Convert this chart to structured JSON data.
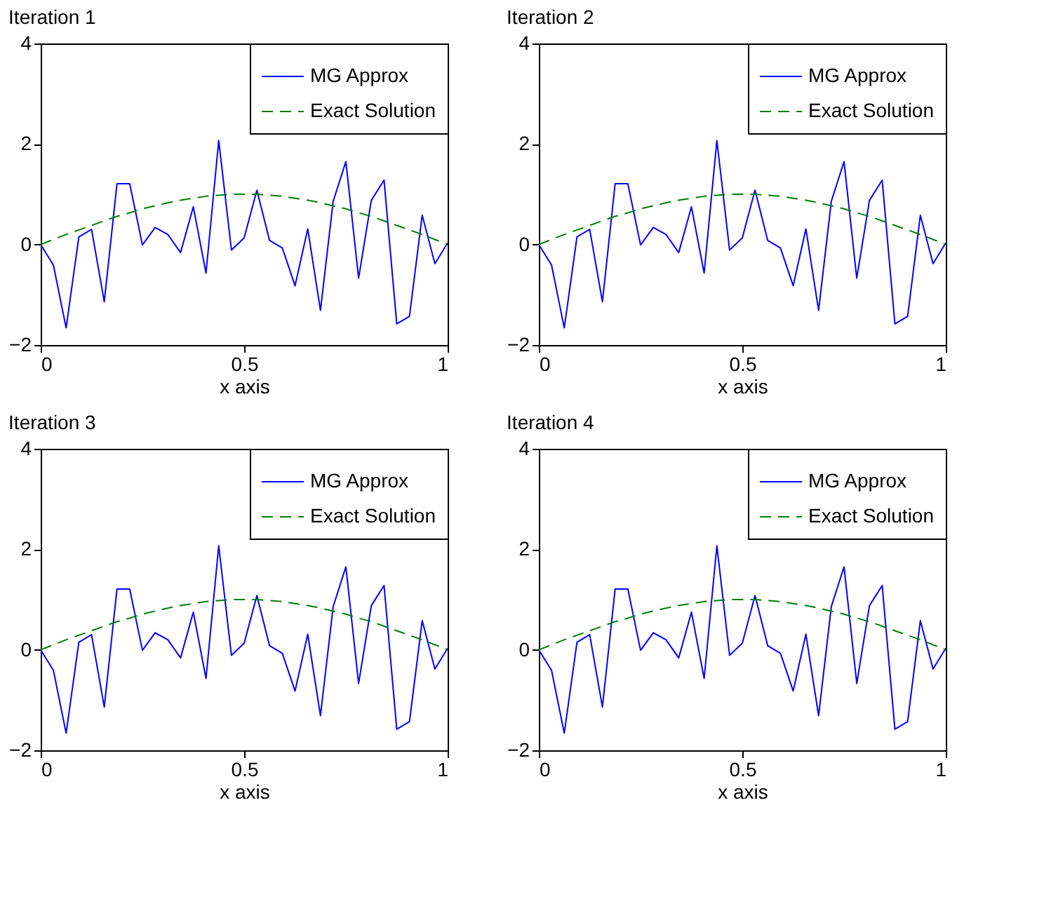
{
  "chart_data": [
    {
      "type": "line",
      "title": "Iteration 1",
      "xlabel": "x axis",
      "x": [
        0,
        0.03125,
        0.0625,
        0.09375,
        0.125,
        0.15625,
        0.1875,
        0.21875,
        0.25,
        0.28125,
        0.3125,
        0.34375,
        0.375,
        0.40625,
        0.4375,
        0.46875,
        0.5,
        0.53125,
        0.5625,
        0.59375,
        0.625,
        0.65625,
        0.6875,
        0.71875,
        0.75,
        0.78125,
        0.8125,
        0.84375,
        0.875,
        0.90625,
        0.9375,
        0.96875,
        1
      ],
      "xlim": [
        0,
        1
      ],
      "xticks": [
        0,
        0.5,
        1
      ],
      "ylim": [
        -2,
        4
      ],
      "yticks": [
        -2,
        0,
        2,
        4
      ],
      "grid": false,
      "legend": "top right",
      "series": [
        {
          "name": "MG Approx",
          "color": "#0000ff",
          "line_style": "solid",
          "values": [
            0,
            -0.41,
            -1.66,
            0.15,
            0.3,
            -1.14,
            1.21,
            1.21,
            -0.01,
            0.34,
            0.2,
            -0.16,
            0.75,
            -0.57,
            2.07,
            -0.11,
            0.13,
            1.08,
            0.08,
            -0.07,
            -0.82,
            0.31,
            -1.31,
            0.86,
            1.65,
            -0.67,
            0.88,
            1.28,
            -1.58,
            -1.43,
            0.58,
            -0.38,
            0.03
          ]
        },
        {
          "name": "Exact Solution",
          "color": "#008000",
          "line_style": "dashed",
          "values": [
            0,
            0.1,
            0.2,
            0.29,
            0.38,
            0.47,
            0.56,
            0.63,
            0.71,
            0.77,
            0.83,
            0.88,
            0.92,
            0.96,
            0.98,
            1,
            1,
            1,
            0.98,
            0.96,
            0.92,
            0.88,
            0.83,
            0.77,
            0.71,
            0.63,
            0.56,
            0.47,
            0.38,
            0.29,
            0.2,
            0.1,
            0
          ]
        }
      ]
    },
    {
      "type": "line",
      "title": "Iteration 2",
      "xlabel": "x axis",
      "x": [
        0,
        0.03125,
        0.0625,
        0.09375,
        0.125,
        0.15625,
        0.1875,
        0.21875,
        0.25,
        0.28125,
        0.3125,
        0.34375,
        0.375,
        0.40625,
        0.4375,
        0.46875,
        0.5,
        0.53125,
        0.5625,
        0.59375,
        0.625,
        0.65625,
        0.6875,
        0.71875,
        0.75,
        0.78125,
        0.8125,
        0.84375,
        0.875,
        0.90625,
        0.9375,
        0.96875,
        1
      ],
      "xlim": [
        0,
        1
      ],
      "xticks": [
        0,
        0.5,
        1
      ],
      "ylim": [
        -2,
        4
      ],
      "yticks": [
        -2,
        0,
        2,
        4
      ],
      "grid": false,
      "legend": "top right",
      "series": [
        {
          "name": "MG Approx",
          "color": "#0000ff",
          "line_style": "solid",
          "values": [
            0,
            -0.41,
            -1.66,
            0.15,
            0.3,
            -1.14,
            1.21,
            1.21,
            -0.01,
            0.34,
            0.2,
            -0.16,
            0.75,
            -0.57,
            2.07,
            -0.11,
            0.13,
            1.08,
            0.08,
            -0.07,
            -0.82,
            0.31,
            -1.31,
            0.86,
            1.65,
            -0.67,
            0.88,
            1.28,
            -1.58,
            -1.43,
            0.58,
            -0.38,
            0.03
          ]
        },
        {
          "name": "Exact Solution",
          "color": "#008000",
          "line_style": "dashed",
          "values": [
            0,
            0.1,
            0.2,
            0.29,
            0.38,
            0.47,
            0.56,
            0.63,
            0.71,
            0.77,
            0.83,
            0.88,
            0.92,
            0.96,
            0.98,
            1,
            1,
            1,
            0.98,
            0.96,
            0.92,
            0.88,
            0.83,
            0.77,
            0.71,
            0.63,
            0.56,
            0.47,
            0.38,
            0.29,
            0.2,
            0.1,
            0
          ]
        }
      ]
    },
    {
      "type": "line",
      "title": "Iteration 3",
      "xlabel": "x axis",
      "x": [
        0,
        0.03125,
        0.0625,
        0.09375,
        0.125,
        0.15625,
        0.1875,
        0.21875,
        0.25,
        0.28125,
        0.3125,
        0.34375,
        0.375,
        0.40625,
        0.4375,
        0.46875,
        0.5,
        0.53125,
        0.5625,
        0.59375,
        0.625,
        0.65625,
        0.6875,
        0.71875,
        0.75,
        0.78125,
        0.8125,
        0.84375,
        0.875,
        0.90625,
        0.9375,
        0.96875,
        1
      ],
      "xlim": [
        0,
        1
      ],
      "xticks": [
        0,
        0.5,
        1
      ],
      "ylim": [
        -2,
        4
      ],
      "yticks": [
        -2,
        0,
        2,
        4
      ],
      "grid": false,
      "legend": "top right",
      "series": [
        {
          "name": "MG Approx",
          "color": "#0000ff",
          "line_style": "solid",
          "values": [
            0,
            -0.41,
            -1.66,
            0.15,
            0.3,
            -1.14,
            1.21,
            1.21,
            -0.01,
            0.34,
            0.2,
            -0.16,
            0.75,
            -0.57,
            2.07,
            -0.11,
            0.13,
            1.08,
            0.08,
            -0.07,
            -0.82,
            0.31,
            -1.31,
            0.86,
            1.65,
            -0.67,
            0.88,
            1.28,
            -1.58,
            -1.43,
            0.58,
            -0.38,
            0.03
          ]
        },
        {
          "name": "Exact Solution",
          "color": "#008000",
          "line_style": "dashed",
          "values": [
            0,
            0.1,
            0.2,
            0.29,
            0.38,
            0.47,
            0.56,
            0.63,
            0.71,
            0.77,
            0.83,
            0.88,
            0.92,
            0.96,
            0.98,
            1,
            1,
            1,
            0.98,
            0.96,
            0.92,
            0.88,
            0.83,
            0.77,
            0.71,
            0.63,
            0.56,
            0.47,
            0.38,
            0.29,
            0.2,
            0.1,
            0
          ]
        }
      ]
    },
    {
      "type": "line",
      "title": "Iteration 4",
      "xlabel": "x axis",
      "x": [
        0,
        0.03125,
        0.0625,
        0.09375,
        0.125,
        0.15625,
        0.1875,
        0.21875,
        0.25,
        0.28125,
        0.3125,
        0.34375,
        0.375,
        0.40625,
        0.4375,
        0.46875,
        0.5,
        0.53125,
        0.5625,
        0.59375,
        0.625,
        0.65625,
        0.6875,
        0.71875,
        0.75,
        0.78125,
        0.8125,
        0.84375,
        0.875,
        0.90625,
        0.9375,
        0.96875,
        1
      ],
      "xlim": [
        0,
        1
      ],
      "xticks": [
        0,
        0.5,
        1
      ],
      "ylim": [
        -2,
        4
      ],
      "yticks": [
        -2,
        0,
        2,
        4
      ],
      "grid": false,
      "legend": "top right",
      "series": [
        {
          "name": "MG Approx",
          "color": "#0000ff",
          "line_style": "solid",
          "values": [
            0,
            -0.41,
            -1.66,
            0.15,
            0.3,
            -1.14,
            1.21,
            1.21,
            -0.01,
            0.34,
            0.2,
            -0.16,
            0.75,
            -0.57,
            2.07,
            -0.11,
            0.13,
            1.08,
            0.08,
            -0.07,
            -0.82,
            0.31,
            -1.31,
            0.86,
            1.65,
            -0.67,
            0.88,
            1.28,
            -1.58,
            -1.43,
            0.58,
            -0.38,
            0.03
          ]
        },
        {
          "name": "Exact Solution",
          "color": "#008000",
          "line_style": "dashed",
          "values": [
            0,
            0.1,
            0.2,
            0.29,
            0.38,
            0.47,
            0.56,
            0.63,
            0.71,
            0.77,
            0.83,
            0.88,
            0.92,
            0.96,
            0.98,
            1,
            1,
            1,
            0.98,
            0.96,
            0.92,
            0.88,
            0.83,
            0.77,
            0.71,
            0.63,
            0.56,
            0.47,
            0.38,
            0.29,
            0.2,
            0.1,
            0
          ]
        }
      ]
    }
  ]
}
